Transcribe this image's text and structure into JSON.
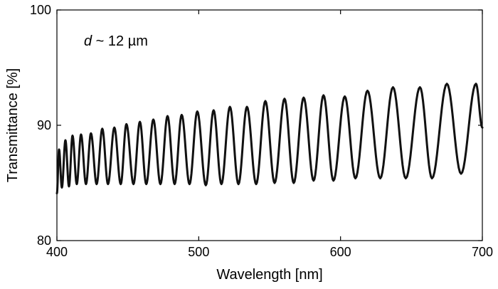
{
  "chart_data": {
    "type": "line",
    "title": "",
    "xlabel": "Wavelength [nm]",
    "ylabel": "Transmittance [%]",
    "xlim": [
      400,
      700
    ],
    "ylim": [
      80,
      100
    ],
    "xticks": [
      400,
      500,
      600,
      700
    ],
    "yticks": [
      80,
      90,
      100
    ],
    "grid": false,
    "legend": "none",
    "annotation": {
      "italic": "d",
      "text": " ~ 12 µm"
    },
    "line_color": "#111111",
    "series": [
      {
        "name": "",
        "x": [
          400.0,
          401.5,
          403.5,
          406.0,
          408.5,
          411.0,
          414.0,
          417.0,
          420.5,
          424.0,
          428.0,
          432.0,
          436.0,
          440.5,
          445.0,
          449.0,
          454.0,
          458.5,
          463.0,
          468.0,
          473.0,
          478.0,
          483.0,
          488.0,
          493.5,
          499.0,
          505.0,
          510.5,
          516.0,
          522.0,
          528.0,
          534.0,
          540.5,
          547.0,
          553.5,
          560.5,
          567.0,
          574.0,
          581.0,
          588.0,
          595.0,
          603.0,
          610.5,
          619.0,
          628.0,
          637.0,
          646.0,
          656.0,
          664.5,
          675.0,
          685.0,
          695.5,
          700.0
        ],
        "y": [
          84.1,
          87.9,
          84.6,
          88.7,
          84.7,
          89.1,
          84.9,
          89.2,
          84.9,
          89.3,
          84.9,
          89.7,
          84.9,
          89.8,
          84.9,
          90.1,
          84.9,
          90.3,
          84.9,
          90.5,
          84.9,
          90.8,
          84.9,
          90.9,
          84.9,
          91.2,
          84.8,
          91.3,
          84.9,
          91.6,
          84.9,
          91.6,
          84.9,
          92.1,
          85.0,
          92.3,
          85.0,
          92.4,
          85.2,
          92.6,
          85.2,
          92.5,
          85.4,
          93.0,
          85.4,
          93.3,
          85.4,
          93.3,
          85.4,
          93.6,
          85.8,
          93.6,
          89.8
        ]
      }
    ]
  }
}
